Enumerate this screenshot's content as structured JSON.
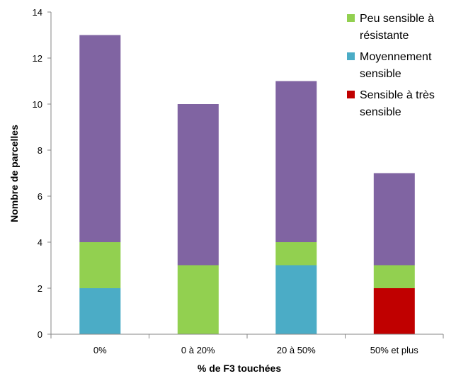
{
  "chart_data": {
    "type": "bar",
    "stacked": true,
    "categories": [
      "0%",
      "0 à 20%",
      "20 à 50%",
      "50% et plus"
    ],
    "series": [
      {
        "name": "Sensible à très sensible",
        "color": "#C00000",
        "values": [
          0,
          0,
          0,
          2
        ]
      },
      {
        "name": "Moyennement sensible",
        "color": "#4BACC6",
        "values": [
          2,
          0,
          3,
          0
        ]
      },
      {
        "name": "Peu sensible à résistante",
        "color": "#92D050",
        "values": [
          2,
          3,
          1,
          1
        ]
      },
      {
        "color": "#8064A2",
        "values": [
          9,
          7,
          7,
          4
        ]
      }
    ],
    "xlabel": "% de F3 touchées",
    "ylabel": "Nombre de parcelles",
    "ylim": [
      0,
      14
    ],
    "yticks": [
      0,
      2,
      4,
      6,
      8,
      10,
      12,
      14
    ],
    "grid": false,
    "legend": {
      "position": "top-right",
      "entries": [
        {
          "label_lines": [
            "Peu sensible à",
            "résistante"
          ],
          "color": "#92D050"
        },
        {
          "label_lines": [
            "Moyennement",
            "sensible"
          ],
          "color": "#4BACC6"
        },
        {
          "label_lines": [
            "Sensible à très",
            "sensible"
          ],
          "color": "#C00000"
        }
      ]
    }
  }
}
